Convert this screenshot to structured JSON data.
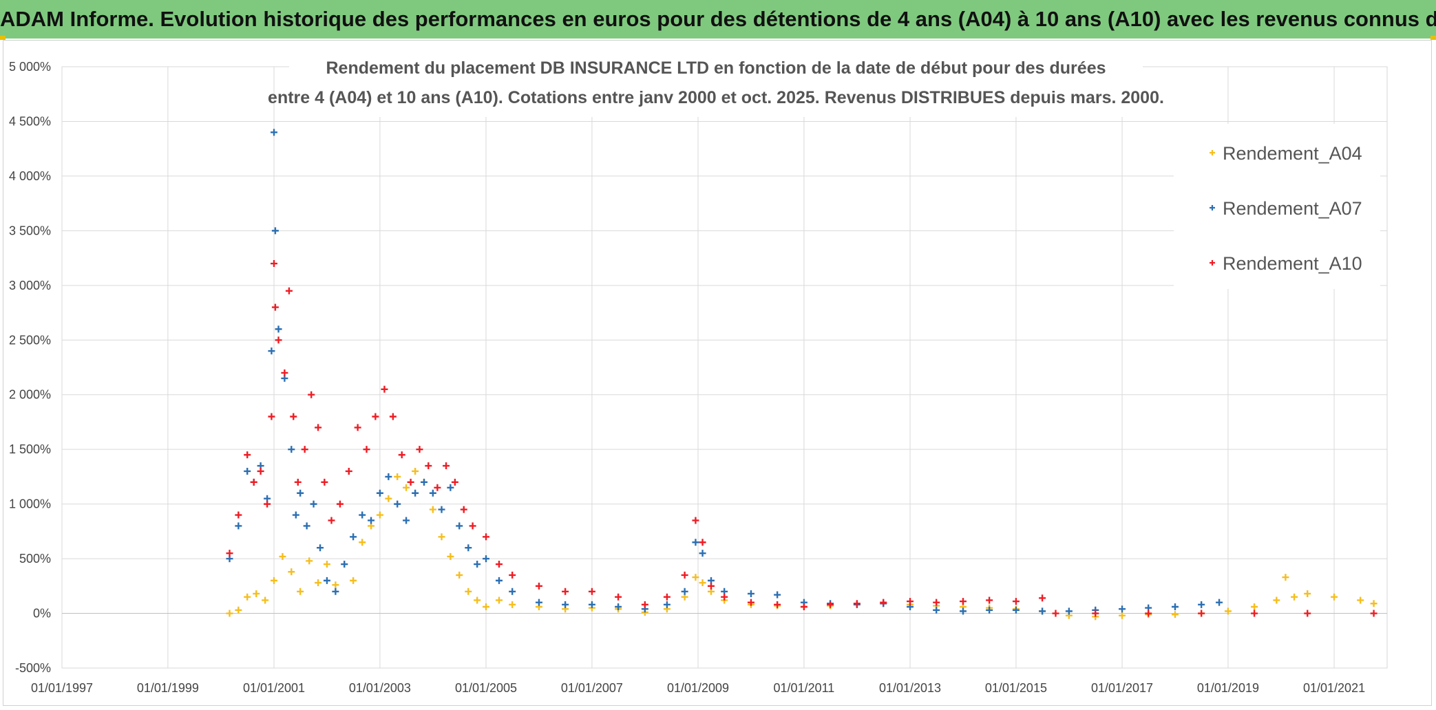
{
  "banner": {
    "title": "ADAM Informe. Evolution historique des performances en euros pour des détentions de 4 ans (A04) à 10 ans (A10) avec les revenus connus distribués"
  },
  "chart_data": {
    "type": "scatter",
    "title_lines": [
      "Rendement du placement DB INSURANCE LTD en fonction de la date de début pour des durées",
      "entre 4 (A04) et 10 ans (A10). Cotations entre janv 2000 et oct. 2025. Revenus DISTRIBUES depuis mars. 2000."
    ],
    "xlabel": "",
    "ylabel": "",
    "x_axis": {
      "type": "date",
      "range": [
        "1997-01-01",
        "2022-01-01"
      ],
      "ticks": [
        "01/01/1997",
        "01/01/1999",
        "01/01/2001",
        "01/01/2003",
        "01/01/2005",
        "01/01/2007",
        "01/01/2009",
        "01/01/2011",
        "01/01/2013",
        "01/01/2015",
        "01/01/2017",
        "01/01/2019",
        "01/01/2021"
      ]
    },
    "y_axis": {
      "range": [
        -500,
        5000
      ],
      "ticks": [
        -500,
        0,
        500,
        1000,
        1500,
        2000,
        2500,
        3000,
        3500,
        4000,
        4500,
        5000
      ],
      "tick_labels": [
        "-500%",
        "0%",
        "500%",
        "1 000%",
        "1 500%",
        "2 000%",
        "2 500%",
        "3 000%",
        "3 500%",
        "4 000%",
        "4 500%",
        "5 000%"
      ],
      "unit": "%"
    },
    "grid": true,
    "legend_position": "top-right",
    "marker": "plus",
    "series": [
      {
        "name": "Rendement_A04",
        "color": "#f5be1e",
        "points": [
          [
            "2000-03-01",
            0
          ],
          [
            "2000-05-01",
            30
          ],
          [
            "2000-07-01",
            150
          ],
          [
            "2000-09-01",
            180
          ],
          [
            "2000-11-01",
            120
          ],
          [
            "2001-01-01",
            300
          ],
          [
            "2001-03-01",
            520
          ],
          [
            "2001-05-01",
            380
          ],
          [
            "2001-07-01",
            200
          ],
          [
            "2001-09-01",
            480
          ],
          [
            "2001-11-01",
            280
          ],
          [
            "2002-01-01",
            450
          ],
          [
            "2002-03-01",
            260
          ],
          [
            "2002-05-01",
            450
          ],
          [
            "2002-07-01",
            300
          ],
          [
            "2002-09-01",
            650
          ],
          [
            "2002-11-01",
            800
          ],
          [
            "2003-01-01",
            900
          ],
          [
            "2003-03-01",
            1050
          ],
          [
            "2003-05-01",
            1250
          ],
          [
            "2003-07-01",
            1150
          ],
          [
            "2003-09-01",
            1300
          ],
          [
            "2003-11-01",
            1200
          ],
          [
            "2004-01-01",
            950
          ],
          [
            "2004-03-01",
            700
          ],
          [
            "2004-05-01",
            520
          ],
          [
            "2004-07-01",
            350
          ],
          [
            "2004-09-01",
            200
          ],
          [
            "2004-11-01",
            120
          ],
          [
            "2005-01-01",
            60
          ],
          [
            "2005-04-01",
            120
          ],
          [
            "2005-07-01",
            80
          ],
          [
            "2006-01-01",
            60
          ],
          [
            "2006-07-01",
            40
          ],
          [
            "2007-01-01",
            50
          ],
          [
            "2007-07-01",
            40
          ],
          [
            "2008-01-01",
            10
          ],
          [
            "2008-06-01",
            40
          ],
          [
            "2008-10-01",
            150
          ],
          [
            "2008-12-15",
            330
          ],
          [
            "2009-02-01",
            280
          ],
          [
            "2009-04-01",
            200
          ],
          [
            "2009-07-01",
            120
          ],
          [
            "2010-01-01",
            80
          ],
          [
            "2010-07-01",
            70
          ],
          [
            "2011-01-01",
            60
          ],
          [
            "2011-07-01",
            70
          ],
          [
            "2012-01-01",
            80
          ],
          [
            "2012-07-01",
            90
          ],
          [
            "2013-01-01",
            80
          ],
          [
            "2013-07-01",
            70
          ],
          [
            "2014-01-01",
            60
          ],
          [
            "2014-07-01",
            50
          ],
          [
            "2015-01-01",
            40
          ],
          [
            "2015-07-01",
            20
          ],
          [
            "2016-01-01",
            -20
          ],
          [
            "2016-07-01",
            -30
          ],
          [
            "2017-01-01",
            -20
          ],
          [
            "2017-07-01",
            -10
          ],
          [
            "2018-01-01",
            -10
          ],
          [
            "2018-07-01",
            0
          ],
          [
            "2019-01-01",
            20
          ],
          [
            "2019-07-01",
            60
          ],
          [
            "2019-12-01",
            120
          ],
          [
            "2020-02-01",
            330
          ],
          [
            "2020-04-01",
            150
          ],
          [
            "2020-07-01",
            180
          ],
          [
            "2021-01-01",
            150
          ],
          [
            "2021-07-01",
            120
          ],
          [
            "2021-10-01",
            90
          ]
        ]
      },
      {
        "name": "Rendement_A07",
        "color": "#2b6fb2",
        "points": [
          [
            "2000-03-01",
            500
          ],
          [
            "2000-05-01",
            800
          ],
          [
            "2000-07-01",
            1300
          ],
          [
            "2000-08-15",
            1200
          ],
          [
            "2000-10-01",
            1350
          ],
          [
            "2000-11-15",
            1050
          ],
          [
            "2000-12-15",
            2400
          ],
          [
            "2001-01-01",
            4400
          ],
          [
            "2001-01-10",
            3500
          ],
          [
            "2001-02-01",
            2600
          ],
          [
            "2001-03-15",
            2150
          ],
          [
            "2001-05-01",
            1500
          ],
          [
            "2001-06-01",
            900
          ],
          [
            "2001-07-01",
            1100
          ],
          [
            "2001-08-15",
            800
          ],
          [
            "2001-10-01",
            1000
          ],
          [
            "2001-11-15",
            600
          ],
          [
            "2002-01-01",
            300
          ],
          [
            "2002-03-01",
            200
          ],
          [
            "2002-05-01",
            450
          ],
          [
            "2002-07-01",
            700
          ],
          [
            "2002-09-01",
            900
          ],
          [
            "2002-11-01",
            850
          ],
          [
            "2003-01-01",
            1100
          ],
          [
            "2003-03-01",
            1250
          ],
          [
            "2003-05-01",
            1000
          ],
          [
            "2003-07-01",
            850
          ],
          [
            "2003-09-01",
            1100
          ],
          [
            "2003-11-01",
            1200
          ],
          [
            "2004-01-01",
            1100
          ],
          [
            "2004-03-01",
            950
          ],
          [
            "2004-05-01",
            1150
          ],
          [
            "2004-07-01",
            800
          ],
          [
            "2004-09-01",
            600
          ],
          [
            "2004-11-01",
            450
          ],
          [
            "2005-01-01",
            500
          ],
          [
            "2005-04-01",
            300
          ],
          [
            "2005-07-01",
            200
          ],
          [
            "2006-01-01",
            100
          ],
          [
            "2006-07-01",
            80
          ],
          [
            "2007-01-01",
            80
          ],
          [
            "2007-07-01",
            60
          ],
          [
            "2008-01-01",
            40
          ],
          [
            "2008-06-01",
            80
          ],
          [
            "2008-10-01",
            200
          ],
          [
            "2008-12-15",
            650
          ],
          [
            "2009-02-01",
            550
          ],
          [
            "2009-04-01",
            300
          ],
          [
            "2009-07-01",
            200
          ],
          [
            "2010-01-01",
            180
          ],
          [
            "2010-07-01",
            170
          ],
          [
            "2011-01-01",
            100
          ],
          [
            "2011-07-01",
            90
          ],
          [
            "2012-01-01",
            80
          ],
          [
            "2012-07-01",
            90
          ],
          [
            "2013-01-01",
            60
          ],
          [
            "2013-07-01",
            30
          ],
          [
            "2014-01-01",
            20
          ],
          [
            "2014-07-01",
            30
          ],
          [
            "2015-01-01",
            30
          ],
          [
            "2015-07-01",
            20
          ],
          [
            "2016-01-01",
            20
          ],
          [
            "2016-07-01",
            30
          ],
          [
            "2017-01-01",
            40
          ],
          [
            "2017-07-01",
            50
          ],
          [
            "2018-01-01",
            60
          ],
          [
            "2018-07-01",
            80
          ],
          [
            "2018-11-01",
            100
          ]
        ]
      },
      {
        "name": "Rendement_A10",
        "color": "#ee1c24",
        "points": [
          [
            "2000-03-01",
            550
          ],
          [
            "2000-05-01",
            900
          ],
          [
            "2000-07-01",
            1450
          ],
          [
            "2000-08-15",
            1200
          ],
          [
            "2000-10-01",
            1300
          ],
          [
            "2000-11-15",
            1000
          ],
          [
            "2000-12-15",
            1800
          ],
          [
            "2001-01-01",
            3200
          ],
          [
            "2001-01-10",
            2800
          ],
          [
            "2001-02-01",
            2500
          ],
          [
            "2001-03-15",
            2200
          ],
          [
            "2001-04-15",
            2950
          ],
          [
            "2001-05-15",
            1800
          ],
          [
            "2001-06-15",
            1200
          ],
          [
            "2001-08-01",
            1500
          ],
          [
            "2001-09-15",
            2000
          ],
          [
            "2001-11-01",
            1700
          ],
          [
            "2001-12-15",
            1200
          ],
          [
            "2002-02-01",
            850
          ],
          [
            "2002-04-01",
            1000
          ],
          [
            "2002-06-01",
            1300
          ],
          [
            "2002-08-01",
            1700
          ],
          [
            "2002-10-01",
            1500
          ],
          [
            "2002-12-01",
            1800
          ],
          [
            "2003-02-01",
            2050
          ],
          [
            "2003-04-01",
            1800
          ],
          [
            "2003-06-01",
            1450
          ],
          [
            "2003-08-01",
            1200
          ],
          [
            "2003-10-01",
            1500
          ],
          [
            "2003-12-01",
            1350
          ],
          [
            "2004-02-01",
            1150
          ],
          [
            "2004-04-01",
            1350
          ],
          [
            "2004-06-01",
            1200
          ],
          [
            "2004-08-01",
            950
          ],
          [
            "2004-10-01",
            800
          ],
          [
            "2005-01-01",
            700
          ],
          [
            "2005-04-01",
            450
          ],
          [
            "2005-07-01",
            350
          ],
          [
            "2006-01-01",
            250
          ],
          [
            "2006-07-01",
            200
          ],
          [
            "2007-01-01",
            200
          ],
          [
            "2007-07-01",
            150
          ],
          [
            "2008-01-01",
            80
          ],
          [
            "2008-06-01",
            150
          ],
          [
            "2008-10-01",
            350
          ],
          [
            "2008-12-15",
            850
          ],
          [
            "2009-02-01",
            650
          ],
          [
            "2009-04-01",
            250
          ],
          [
            "2009-07-01",
            150
          ],
          [
            "2010-01-01",
            100
          ],
          [
            "2010-07-01",
            80
          ],
          [
            "2011-01-01",
            60
          ],
          [
            "2011-07-01",
            80
          ],
          [
            "2012-01-01",
            90
          ],
          [
            "2012-07-01",
            100
          ],
          [
            "2013-01-01",
            110
          ],
          [
            "2013-07-01",
            100
          ],
          [
            "2014-01-01",
            110
          ],
          [
            "2014-07-01",
            120
          ],
          [
            "2015-01-01",
            110
          ],
          [
            "2015-07-01",
            140
          ],
          [
            "2015-10-01",
            0
          ],
          [
            "2016-07-01",
            0
          ],
          [
            "2017-07-01",
            0
          ],
          [
            "2018-07-01",
            0
          ],
          [
            "2019-07-01",
            0
          ],
          [
            "2020-07-01",
            0
          ],
          [
            "2021-10-01",
            0
          ]
        ]
      }
    ]
  }
}
